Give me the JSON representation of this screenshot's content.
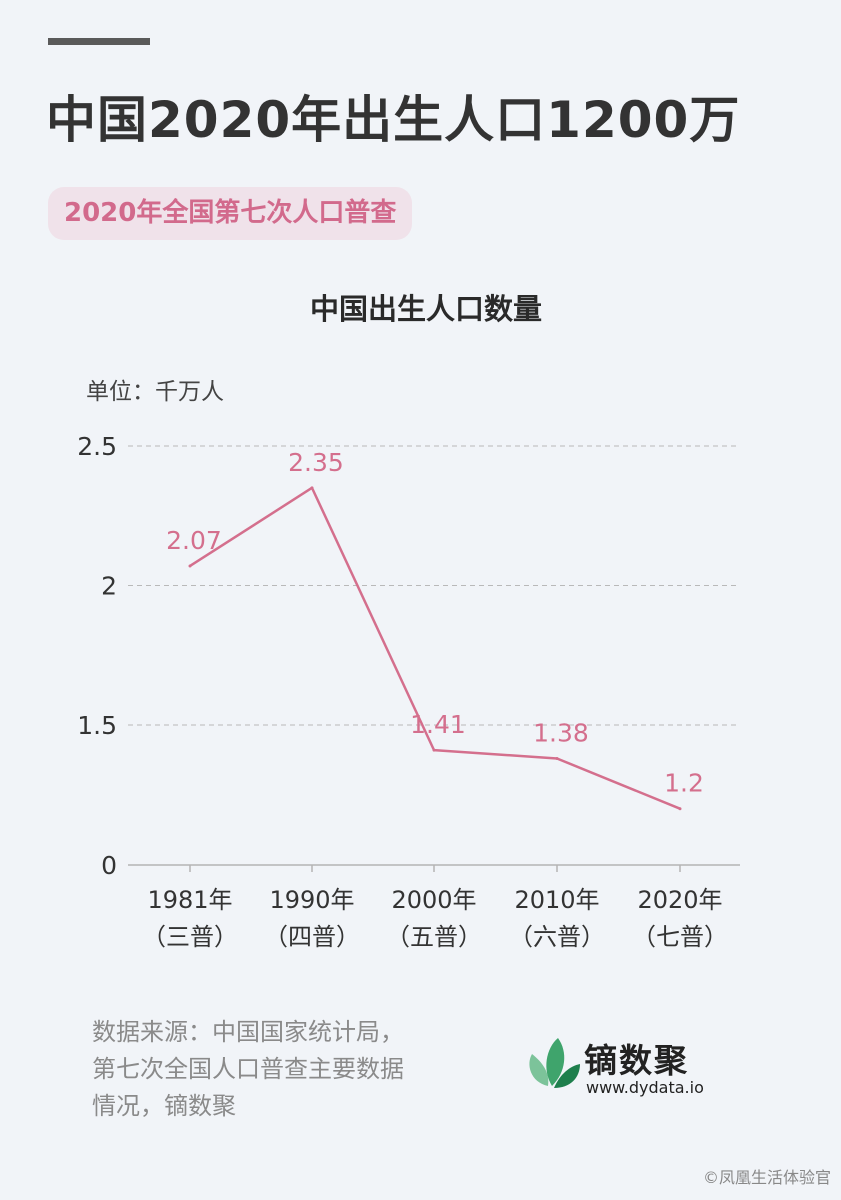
{
  "header": {
    "title": "中国2020年出生人口1200万",
    "subtitle": "2020年全国第七次人口普查"
  },
  "chart_data": {
    "type": "line",
    "title": "中国出生人口数量",
    "unit_label": "单位：千万人",
    "categories": [
      {
        "year": "1981年",
        "census": "（三普）"
      },
      {
        "year": "1990年",
        "census": "（四普）"
      },
      {
        "year": "2000年",
        "census": "（五普）"
      },
      {
        "year": "2010年",
        "census": "（六普）"
      },
      {
        "year": "2020年",
        "census": "（七普）"
      }
    ],
    "values": [
      2.07,
      2.35,
      1.41,
      1.38,
      1.2
    ],
    "y_ticks": [
      "0",
      "1.5",
      "2",
      "2.5"
    ],
    "y_axis_break": true,
    "grid": "dashed",
    "line_color": "#d46f8d"
  },
  "footer": {
    "source_lines": [
      "数据来源：中国国家统计局，",
      "第七次全国人口普查主要数据",
      "情况，镝数聚"
    ],
    "logo_name": "镝数聚",
    "logo_url": "www.dydata.io",
    "watermark": "©凤凰生活体验官"
  }
}
